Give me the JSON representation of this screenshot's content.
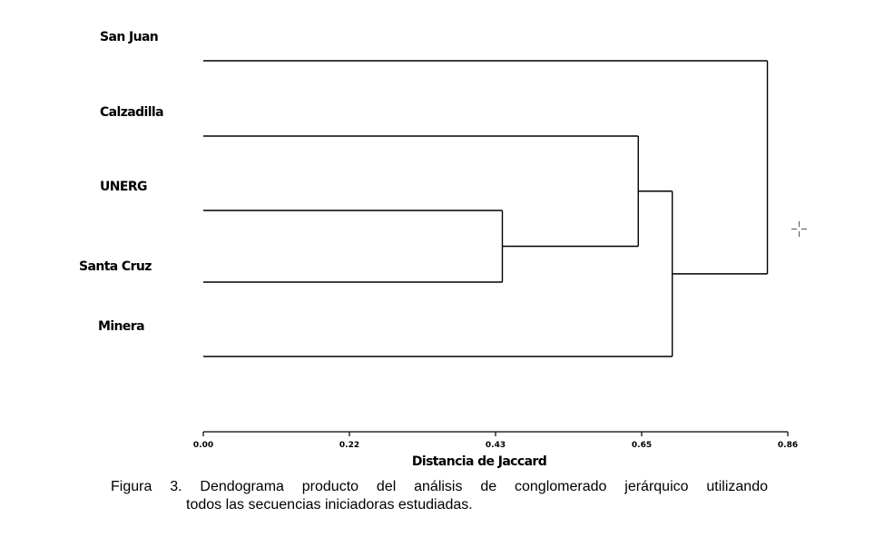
{
  "chart_data": {
    "type": "dendrogram",
    "orientation": "horizontal",
    "leaves": [
      "San Juan",
      "Calzadilla",
      "UNERG",
      "Santa Cruz",
      "Minera"
    ],
    "merges": [
      {
        "children": [
          "UNERG",
          "Santa Cruz"
        ],
        "distance": 0.44
      },
      {
        "children": [
          "Calzadilla",
          "UNERG+Santa Cruz"
        ],
        "distance": 0.64
      },
      {
        "children": [
          "Calzadilla+UNERG+Santa Cruz",
          "Minera"
        ],
        "distance": 0.69
      },
      {
        "children": [
          "San Juan",
          "rest"
        ],
        "distance": 0.83
      }
    ],
    "xlabel": "Distancia de Jaccard",
    "xticks": [
      "0.00",
      "0.22",
      "0.43",
      "0.65",
      "0.86"
    ],
    "xtick_values": [
      0.0,
      0.215,
      0.43,
      0.645,
      0.86
    ],
    "xlim": [
      0,
      0.86
    ],
    "grid": false
  },
  "caption": {
    "line1": "Figura 3. Dendograma producto del análisis de conglomerado jerárquico utilizando",
    "line2": "todos las secuencias iniciadoras estudiadas."
  }
}
